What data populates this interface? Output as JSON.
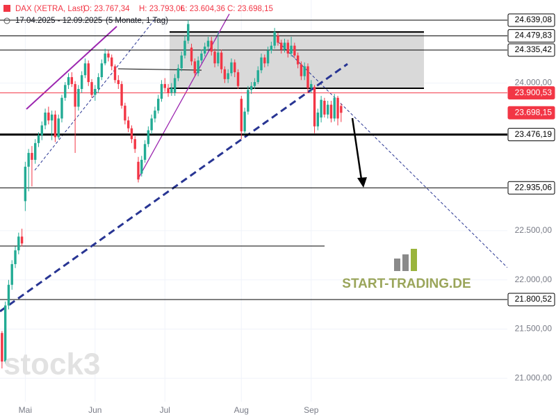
{
  "chart_data": {
    "type": "candlestick",
    "title": "DAX (XETRA, Last)",
    "ohlc_labels": [
      "O: 23.767,34",
      "H: 23.793,06",
      "L: 23.604,36",
      "C: 23.698,15"
    ],
    "subtitle": "17.04.2025 - 12.09.2025",
    "period": "(5 Monate, 1 Tag)",
    "watermarks": [
      "stock3",
      "START-TRADING.DE"
    ],
    "up_color": "#22ab94",
    "down_color": "#f23645",
    "grid": true,
    "xlim": [
      -0.6,
      152
    ],
    "xticks": [
      {
        "value": 7,
        "label": "Mai"
      },
      {
        "value": 28,
        "label": "Jun"
      },
      {
        "value": 49,
        "label": "Jul"
      },
      {
        "value": 72,
        "label": "Aug"
      },
      {
        "value": 93,
        "label": "Sep"
      }
    ],
    "ylim": [
      20762,
      24844
    ],
    "yticks": [
      {
        "value": 21000,
        "label": "21.000,00"
      },
      {
        "value": 21500,
        "label": "21.500,00"
      },
      {
        "value": 22000,
        "label": "22.000,00"
      },
      {
        "value": 22500,
        "label": "22.500,00"
      },
      {
        "value": 24000,
        "label": "24.000,00"
      }
    ],
    "levels": [
      {
        "value": 24639.08,
        "label": "24.639,08",
        "color": "#000000"
      },
      {
        "value": 24479.83,
        "label": "24.479,83",
        "color": "#000000"
      },
      {
        "value": 24335.42,
        "label": "24.335,42",
        "color": "#000000"
      },
      {
        "value": 23900.53,
        "label": "23.900,53",
        "color": "#f23645"
      },
      {
        "value": 23698.15,
        "label": "23.698,15",
        "color": "#f23645"
      },
      {
        "value": 23476.19,
        "label": "23.476,19",
        "color": "#000000"
      },
      {
        "value": 22935.06,
        "label": "22.935,06",
        "color": "#000000"
      },
      {
        "value": 21800.52,
        "label": "21.800,52",
        "color": "#000000"
      }
    ],
    "candles": [
      [
        21460,
        21480,
        21100,
        21170
      ],
      [
        21170,
        21780,
        21150,
        21740
      ],
      [
        21740,
        22000,
        21700,
        21950
      ],
      [
        21950,
        22200,
        21900,
        22160
      ],
      [
        22160,
        22340,
        22120,
        22300
      ],
      [
        22300,
        22480,
        22260,
        22440
      ],
      [
        22440,
        22520,
        22340,
        22370
      ],
      [
        22800,
        23200,
        22700,
        23150
      ],
      [
        23150,
        23330,
        22900,
        23290
      ],
      [
        23290,
        23360,
        22950,
        23220
      ],
      [
        23220,
        23430,
        23180,
        23390
      ],
      [
        23390,
        23500,
        23350,
        23470
      ],
      [
        23470,
        23610,
        23420,
        23570
      ],
      [
        23570,
        23740,
        23530,
        23700
      ],
      [
        23700,
        23760,
        23580,
        23620
      ],
      [
        23620,
        23720,
        23420,
        23680
      ],
      [
        23680,
        23720,
        23400,
        23450
      ],
      [
        23450,
        23680,
        23430,
        23640
      ],
      [
        23640,
        23880,
        23600,
        23850
      ],
      [
        23850,
        24010,
        23820,
        23980
      ],
      [
        23980,
        24100,
        23940,
        24060
      ],
      [
        24060,
        24110,
        23960,
        23990
      ],
      [
        23990,
        24020,
        23290,
        23760
      ],
      [
        23760,
        23980,
        23720,
        23940
      ],
      [
        23940,
        24120,
        23900,
        24080
      ],
      [
        24080,
        24250,
        24050,
        24200
      ],
      [
        24200,
        24230,
        23970,
        24010
      ],
      [
        24010,
        24040,
        23850,
        23880
      ],
      [
        23880,
        23980,
        23820,
        23940
      ],
      [
        23940,
        24100,
        23900,
        24060
      ],
      [
        24060,
        24240,
        24030,
        24200
      ],
      [
        24200,
        24350,
        24180,
        24300
      ],
      [
        24300,
        24330,
        24220,
        24260
      ],
      [
        24260,
        24290,
        24130,
        24170
      ],
      [
        24170,
        24190,
        24000,
        24030
      ],
      [
        24030,
        24080,
        23940,
        23990
      ],
      [
        23990,
        24020,
        23740,
        23770
      ],
      [
        23770,
        23800,
        23580,
        23620
      ],
      [
        23620,
        23660,
        23500,
        23540
      ],
      [
        23540,
        23570,
        23390,
        23430
      ],
      [
        23430,
        23460,
        23290,
        23330
      ],
      [
        23200,
        23250,
        22990,
        23020
      ],
      [
        23080,
        23260,
        23050,
        23220
      ],
      [
        23220,
        23420,
        23190,
        23380
      ],
      [
        23380,
        23560,
        23350,
        23520
      ],
      [
        23520,
        23680,
        23480,
        23640
      ],
      [
        23640,
        23760,
        23600,
        23720
      ],
      [
        23720,
        23880,
        23690,
        23840
      ],
      [
        23840,
        24030,
        23810,
        23990
      ],
      [
        23990,
        24050,
        23910,
        23950
      ],
      [
        23950,
        23990,
        23860,
        23900
      ],
      [
        23900,
        24000,
        23870,
        23950
      ],
      [
        23900,
        24090,
        23870,
        24050
      ],
      [
        24050,
        24190,
        24020,
        24150
      ],
      [
        24150,
        24320,
        24120,
        24280
      ],
      [
        24280,
        24480,
        24250,
        24430
      ],
      [
        24430,
        24640,
        24400,
        24600
      ],
      [
        24360,
        24400,
        24180,
        24220
      ],
      [
        24220,
        24250,
        24060,
        24100
      ],
      [
        24100,
        24270,
        24070,
        24230
      ],
      [
        24230,
        24340,
        24200,
        24300
      ],
      [
        24300,
        24410,
        24270,
        24370
      ],
      [
        24370,
        24470,
        24340,
        24430
      ],
      [
        24430,
        24470,
        24280,
        24320
      ],
      [
        24320,
        24350,
        24160,
        24200
      ],
      [
        24200,
        24520,
        24170,
        24310
      ],
      [
        24310,
        24340,
        24100,
        24140
      ],
      [
        24140,
        24170,
        24000,
        24040
      ],
      [
        24040,
        24140,
        24000,
        24100
      ],
      [
        24100,
        24250,
        24070,
        24210
      ],
      [
        24210,
        24240,
        24060,
        24110
      ],
      [
        24110,
        24140,
        23940,
        23970
      ],
      [
        23840,
        23870,
        23430,
        23510
      ],
      [
        23510,
        23750,
        23480,
        23710
      ],
      [
        23710,
        23970,
        23680,
        23930
      ],
      [
        23930,
        24010,
        23890,
        23970
      ],
      [
        23970,
        24050,
        23940,
        24010
      ],
      [
        24010,
        24170,
        23990,
        24130
      ],
      [
        24130,
        24300,
        24100,
        24260
      ],
      [
        24260,
        24290,
        24160,
        24200
      ],
      [
        24200,
        24370,
        24170,
        24330
      ],
      [
        24330,
        24420,
        24300,
        24380
      ],
      [
        24380,
        24560,
        24350,
        24520
      ],
      [
        24480,
        24510,
        24380,
        24410
      ],
      [
        24410,
        24440,
        24300,
        24340
      ],
      [
        24340,
        24450,
        24310,
        24410
      ],
      [
        24410,
        24440,
        24260,
        24300
      ],
      [
        24300,
        24470,
        24270,
        24380
      ],
      [
        24380,
        24410,
        24250,
        24280
      ],
      [
        24280,
        24310,
        24150,
        24190
      ],
      [
        24190,
        24220,
        24030,
        24070
      ],
      [
        24070,
        24210,
        24030,
        24170
      ],
      [
        24170,
        24200,
        23900,
        23950
      ],
      [
        23950,
        24030,
        23900,
        23990
      ],
      [
        23960,
        23980,
        23490,
        23560
      ],
      [
        23560,
        23740,
        23520,
        23700
      ],
      [
        23650,
        23870,
        23600,
        23830
      ],
      [
        23820,
        23850,
        23650,
        23680
      ],
      [
        23680,
        23820,
        23640,
        23780
      ],
      [
        23780,
        23820,
        23600,
        23640
      ],
      [
        23640,
        23890,
        23610,
        23850
      ],
      [
        23850,
        23870,
        23570,
        23640
      ],
      [
        23767.34,
        23793.06,
        23604.36,
        23698.15
      ]
    ]
  }
}
